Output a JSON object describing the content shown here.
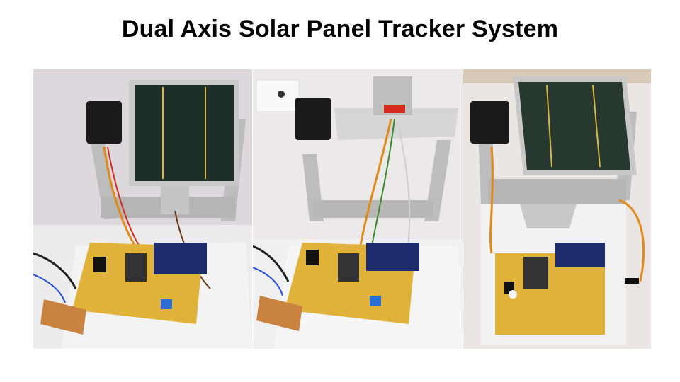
{
  "slide": {
    "title": "Dual Axis Solar Panel Tracker System"
  },
  "photos": [
    {
      "icon": "solar-tracker-front-photo"
    },
    {
      "icon": "solar-tracker-side-photo"
    },
    {
      "icon": "solar-tracker-top-photo"
    }
  ],
  "colors": {
    "panel": "#1e2f2a",
    "frame": "#c9c9c9",
    "pcb": "#e0b23a",
    "servo": "#1a1a1a",
    "lcd": "#1d2a6b",
    "wire_red": "#d62b1e",
    "wire_orange": "#e08a1c",
    "wire_brown": "#6b3a1a"
  }
}
